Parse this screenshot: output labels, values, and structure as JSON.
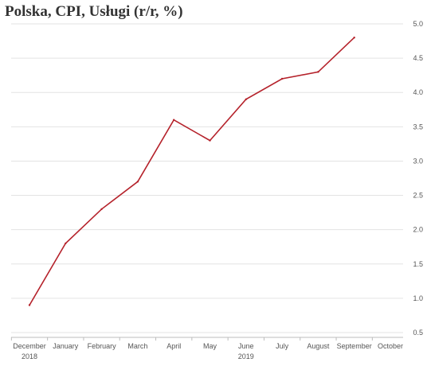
{
  "chart_data": {
    "type": "line",
    "title": "Polska, CPI, Usługi (r/r, %)",
    "categories": [
      "December",
      "January",
      "February",
      "March",
      "April",
      "May",
      "June",
      "July",
      "August",
      "September",
      "October"
    ],
    "year_labels": [
      {
        "category_index": 0,
        "text": "2018"
      },
      {
        "category_index": 6,
        "text": "2019"
      }
    ],
    "series": [
      {
        "color": "#b5222b",
        "values": [
          0.9,
          1.8,
          2.3,
          2.7,
          3.6,
          3.3,
          3.9,
          4.2,
          4.3,
          4.8,
          null
        ]
      }
    ],
    "y_ticks": [
      "0.5",
      "1.0",
      "1.5",
      "2.0",
      "2.5",
      "3.0",
      "3.5",
      "4.0",
      "4.5",
      "5.0"
    ],
    "ylim": [
      0.5,
      5.0
    ],
    "y_axis_position": "right",
    "grid": true,
    "xlabel": "",
    "ylabel": ""
  },
  "colors": {
    "line": "#b5222b",
    "grid": "#e3e3e3",
    "axis": "#bdbdbd",
    "text": "#555555",
    "title": "#333333"
  }
}
